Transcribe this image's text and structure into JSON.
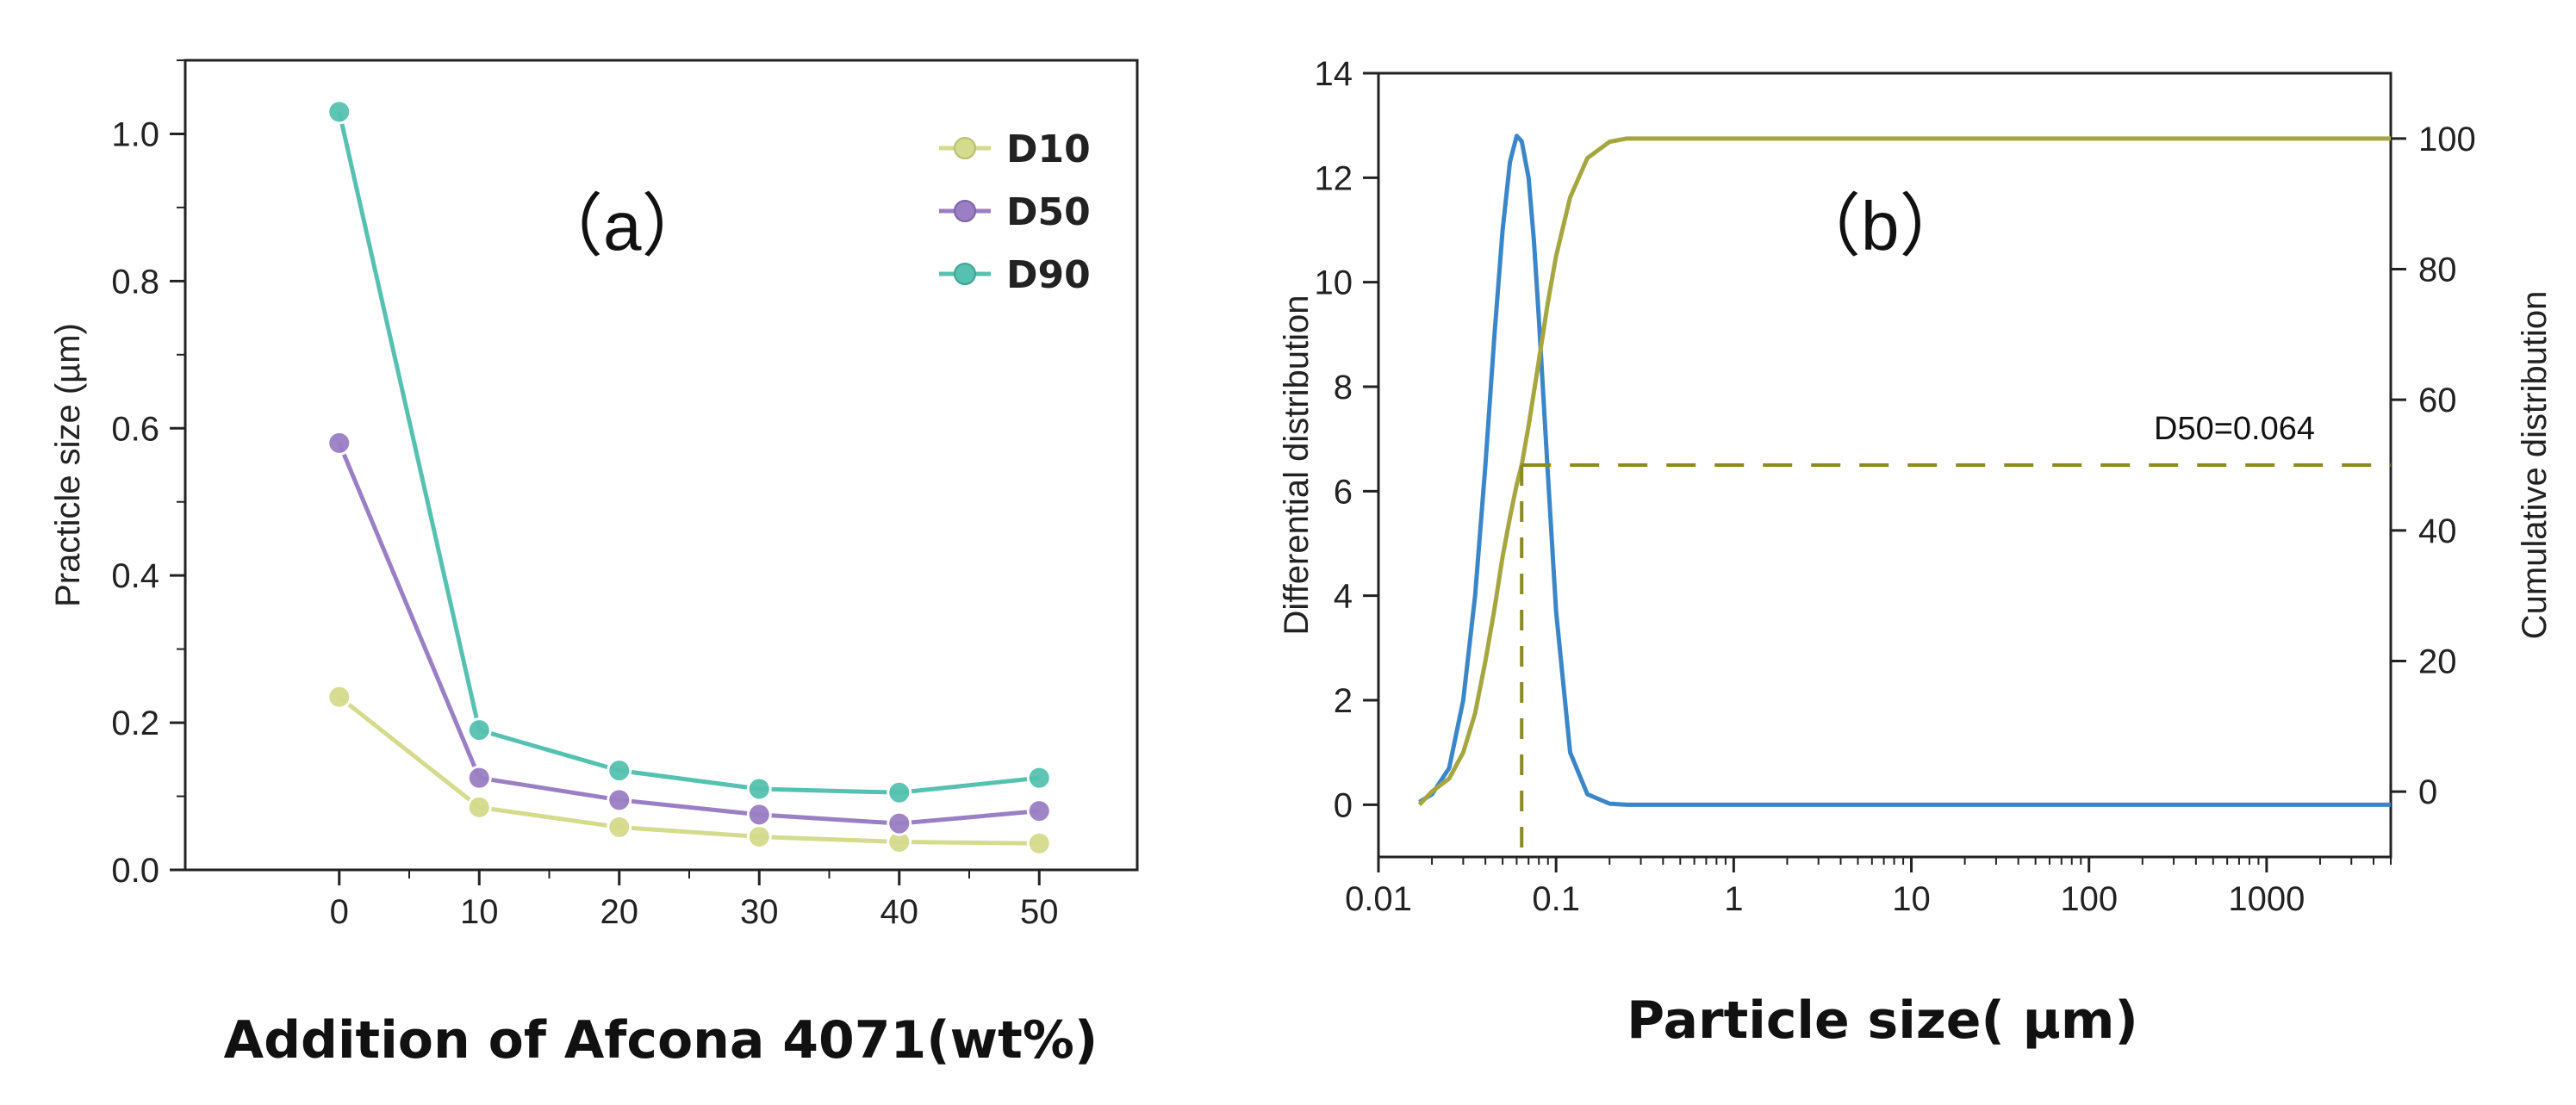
{
  "chart_data": [
    {
      "type": "line",
      "panel_label": "（a）",
      "title": "",
      "xlabel": "Addition of Afcona 4071(wt%)",
      "ylabel": "Practicle size (µm)",
      "x": [
        0,
        10,
        20,
        30,
        40,
        50
      ],
      "xticks": [
        "0",
        "10",
        "20",
        "30",
        "40",
        "50"
      ],
      "xlim": [
        -11,
        57
      ],
      "yticks": [
        "0.0",
        "0.2",
        "0.4",
        "0.6",
        "0.8",
        "1.0"
      ],
      "ylim": [
        0.0,
        1.1
      ],
      "legend_position": "top-right",
      "series": [
        {
          "name": "D10",
          "color": "#d4db8c",
          "values": [
            0.235,
            0.085,
            0.058,
            0.045,
            0.038,
            0.036
          ]
        },
        {
          "name": "D50",
          "color": "#9b7fc4",
          "values": [
            0.58,
            0.125,
            0.095,
            0.075,
            0.063,
            0.08
          ]
        },
        {
          "name": "D90",
          "color": "#56c1b0",
          "values": [
            1.03,
            0.19,
            0.135,
            0.11,
            0.105,
            0.125
          ]
        }
      ]
    },
    {
      "type": "line",
      "panel_label": "（b）",
      "title": "",
      "xlabel": "Particle size( µm)",
      "ylabel_left": "Differential distribution",
      "ylabel_right": "Cumulative distribution",
      "x_scale": "log",
      "xlim": [
        0.01,
        5000
      ],
      "xticks": [
        "0.01",
        "0.1",
        "1",
        "10",
        "100",
        "1000"
      ],
      "ylim_left": [
        -1,
        14
      ],
      "yticks_left": [
        "0",
        "2",
        "4",
        "6",
        "8",
        "10",
        "12",
        "14"
      ],
      "ylim_right": [
        -10,
        110
      ],
      "yticks_right": [
        "0",
        "20",
        "40",
        "60",
        "80",
        "100"
      ],
      "annotation": "D50=0.064",
      "d50": 0.064,
      "series": [
        {
          "name": "Differential distribution",
          "axis": "left",
          "color": "#3a86c8",
          "x": [
            0.017,
            0.02,
            0.025,
            0.03,
            0.035,
            0.04,
            0.045,
            0.05,
            0.055,
            0.06,
            0.064,
            0.07,
            0.075,
            0.08,
            0.09,
            0.1,
            0.12,
            0.15,
            0.2,
            0.25,
            0.3,
            1,
            10,
            100,
            1000,
            5000
          ],
          "values": [
            0.05,
            0.2,
            0.7,
            2.0,
            4.0,
            6.5,
            9.0,
            11.0,
            12.3,
            12.8,
            12.7,
            12.0,
            10.8,
            9.3,
            6.3,
            3.7,
            1.0,
            0.2,
            0.02,
            0.0,
            0.0,
            0.0,
            0.0,
            0.0,
            0.0,
            0.0
          ]
        },
        {
          "name": "Cumulative distribution",
          "axis": "right",
          "color": "#a6a640",
          "x": [
            0.017,
            0.02,
            0.025,
            0.03,
            0.035,
            0.04,
            0.045,
            0.05,
            0.055,
            0.06,
            0.064,
            0.07,
            0.08,
            0.09,
            0.1,
            0.12,
            0.15,
            0.2,
            0.25,
            0.3,
            1,
            10,
            100,
            1000,
            5000
          ],
          "values": [
            -2,
            0,
            2,
            6,
            12,
            20,
            28,
            36,
            42,
            47,
            50,
            56,
            66,
            75,
            82,
            91,
            97,
            99.5,
            100,
            100,
            100,
            100,
            100,
            100,
            100
          ]
        },
        {
          "name": "D50 reference",
          "axis": "right",
          "color": "#8a8a20",
          "dashed": true,
          "x": [
            0.064,
            5000
          ],
          "values": [
            50,
            50
          ]
        }
      ]
    }
  ]
}
